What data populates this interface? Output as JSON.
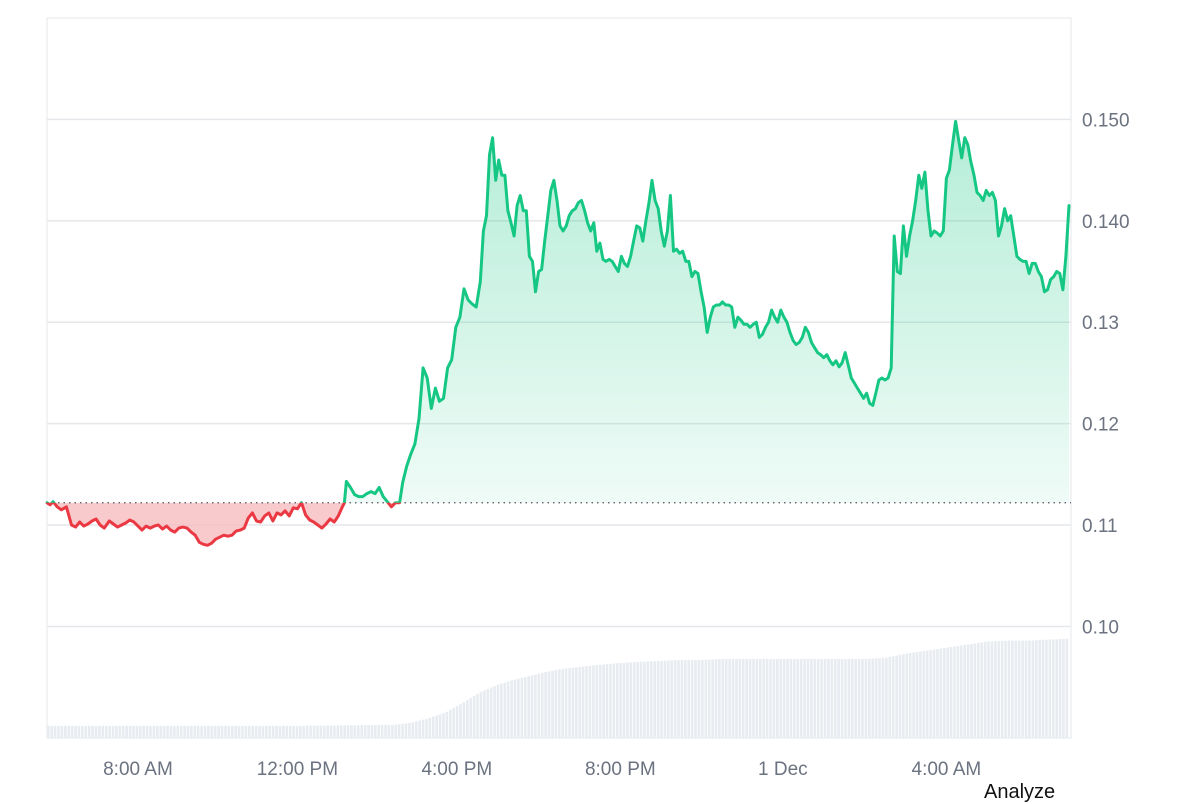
{
  "chart_data": {
    "type": "area",
    "baseline": 0.1122,
    "ylim": [
      0.089,
      0.16
    ],
    "yticks": [
      {
        "value": 0.15,
        "label": "0.150"
      },
      {
        "value": 0.14,
        "label": "0.140"
      },
      {
        "value": 0.13,
        "label": "0.13"
      },
      {
        "value": 0.12,
        "label": "0.12"
      },
      {
        "value": 0.11,
        "label": "0.11"
      },
      {
        "value": 0.1,
        "label": "0.10"
      }
    ],
    "xlim": [
      0,
      1000
    ],
    "xticks": [
      {
        "t": 89,
        "label": "8:00 AM"
      },
      {
        "t": 245,
        "label": "12:00 PM"
      },
      {
        "t": 401,
        "label": "4:00 PM"
      },
      {
        "t": 561,
        "label": "8:00 PM"
      },
      {
        "t": 720,
        "label": "1 Dec"
      },
      {
        "t": 880,
        "label": "4:00 AM"
      }
    ],
    "price": [
      [
        0,
        0.1122
      ],
      [
        3,
        0.112
      ],
      [
        6,
        0.1123
      ],
      [
        10,
        0.1118
      ],
      [
        14,
        0.1115
      ],
      [
        19,
        0.1118
      ],
      [
        24,
        0.11
      ],
      [
        28,
        0.1098
      ],
      [
        32,
        0.1103
      ],
      [
        36,
        0.1099
      ],
      [
        40,
        0.1101
      ],
      [
        44,
        0.1104
      ],
      [
        48,
        0.1106
      ],
      [
        52,
        0.11
      ],
      [
        56,
        0.1097
      ],
      [
        61,
        0.1104
      ],
      [
        65,
        0.1101
      ],
      [
        69,
        0.1098
      ],
      [
        73,
        0.11
      ],
      [
        77,
        0.1102
      ],
      [
        81,
        0.1105
      ],
      [
        85,
        0.1103
      ],
      [
        89,
        0.1099
      ],
      [
        93,
        0.1095
      ],
      [
        97,
        0.1099
      ],
      [
        101,
        0.1097
      ],
      [
        105,
        0.1099
      ],
      [
        109,
        0.11
      ],
      [
        113,
        0.1096
      ],
      [
        117,
        0.1099
      ],
      [
        121,
        0.1095
      ],
      [
        125,
        0.1093
      ],
      [
        129,
        0.1097
      ],
      [
        133,
        0.1098
      ],
      [
        137,
        0.1097
      ],
      [
        141,
        0.1093
      ],
      [
        145,
        0.109
      ],
      [
        149,
        0.1083
      ],
      [
        153,
        0.1081
      ],
      [
        157,
        0.108
      ],
      [
        161,
        0.1082
      ],
      [
        165,
        0.1086
      ],
      [
        169,
        0.1088
      ],
      [
        173,
        0.109
      ],
      [
        177,
        0.1089
      ],
      [
        181,
        0.109
      ],
      [
        185,
        0.1094
      ],
      [
        189,
        0.1095
      ],
      [
        193,
        0.1097
      ],
      [
        197,
        0.1107
      ],
      [
        201,
        0.1112
      ],
      [
        205,
        0.1104
      ],
      [
        209,
        0.1103
      ],
      [
        213,
        0.1109
      ],
      [
        217,
        0.1112
      ],
      [
        221,
        0.1104
      ],
      [
        225,
        0.1112
      ],
      [
        229,
        0.111
      ],
      [
        233,
        0.1114
      ],
      [
        237,
        0.1109
      ],
      [
        241,
        0.1117
      ],
      [
        245,
        0.1116
      ],
      [
        249,
        0.1122
      ],
      [
        253,
        0.111
      ],
      [
        257,
        0.1105
      ],
      [
        261,
        0.1103
      ],
      [
        265,
        0.11
      ],
      [
        269,
        0.1097
      ],
      [
        273,
        0.1101
      ],
      [
        277,
        0.1106
      ],
      [
        281,
        0.1103
      ],
      [
        285,
        0.1109
      ],
      [
        289,
        0.1118
      ],
      [
        291,
        0.1122
      ],
      [
        293,
        0.1143
      ],
      [
        297,
        0.1137
      ],
      [
        301,
        0.113
      ],
      [
        305,
        0.1128
      ],
      [
        309,
        0.1128
      ],
      [
        313,
        0.1131
      ],
      [
        317,
        0.1133
      ],
      [
        321,
        0.1131
      ],
      [
        325,
        0.1137
      ],
      [
        329,
        0.1128
      ],
      [
        333,
        0.1123
      ],
      [
        337,
        0.1118
      ],
      [
        341,
        0.1122
      ],
      [
        345,
        0.1122
      ],
      [
        348,
        0.1142
      ],
      [
        352,
        0.1158
      ],
      [
        356,
        0.117
      ],
      [
        360,
        0.118
      ],
      [
        364,
        0.1205
      ],
      [
        368,
        0.1255
      ],
      [
        372,
        0.1245
      ],
      [
        376,
        0.1215
      ],
      [
        380,
        0.1235
      ],
      [
        384,
        0.1222
      ],
      [
        388,
        0.1225
      ],
      [
        392,
        0.1255
      ],
      [
        396,
        0.1263
      ],
      [
        400,
        0.1295
      ],
      [
        404,
        0.1305
      ],
      [
        408,
        0.1333
      ],
      [
        412,
        0.1322
      ],
      [
        416,
        0.1318
      ],
      [
        420,
        0.1315
      ],
      [
        424,
        0.134
      ],
      [
        427,
        0.139
      ],
      [
        430,
        0.1405
      ],
      [
        433,
        0.1465
      ],
      [
        436,
        0.1482
      ],
      [
        439,
        0.144
      ],
      [
        442,
        0.146
      ],
      [
        445,
        0.1445
      ],
      [
        448,
        0.1445
      ],
      [
        451,
        0.141
      ],
      [
        454,
        0.1398
      ],
      [
        457,
        0.1385
      ],
      [
        460,
        0.1415
      ],
      [
        463,
        0.1425
      ],
      [
        466,
        0.141
      ],
      [
        469,
        0.141
      ],
      [
        472,
        0.1365
      ],
      [
        475,
        0.136
      ],
      [
        478,
        0.133
      ],
      [
        481,
        0.135
      ],
      [
        484,
        0.1352
      ],
      [
        487,
        0.138
      ],
      [
        490,
        0.1405
      ],
      [
        493,
        0.143
      ],
      [
        496,
        0.144
      ],
      [
        499,
        0.142
      ],
      [
        502,
        0.1395
      ],
      [
        505,
        0.139
      ],
      [
        508,
        0.1395
      ],
      [
        511,
        0.1405
      ],
      [
        514,
        0.141
      ],
      [
        517,
        0.1412
      ],
      [
        520,
        0.1418
      ],
      [
        523,
        0.142
      ],
      [
        526,
        0.141
      ],
      [
        529,
        0.1398
      ],
      [
        532,
        0.139
      ],
      [
        535,
        0.1398
      ],
      [
        538,
        0.137
      ],
      [
        541,
        0.1378
      ],
      [
        544,
        0.1362
      ],
      [
        547,
        0.136
      ],
      [
        550,
        0.1362
      ],
      [
        553,
        0.136
      ],
      [
        556,
        0.1355
      ],
      [
        559,
        0.135
      ],
      [
        562,
        0.1365
      ],
      [
        565,
        0.1358
      ],
      [
        568,
        0.1355
      ],
      [
        571,
        0.1365
      ],
      [
        574,
        0.138
      ],
      [
        577,
        0.1395
      ],
      [
        580,
        0.1393
      ],
      [
        583,
        0.138
      ],
      [
        586,
        0.14
      ],
      [
        589,
        0.1418
      ],
      [
        592,
        0.144
      ],
      [
        595,
        0.142
      ],
      [
        598,
        0.1412
      ],
      [
        601,
        0.139
      ],
      [
        604,
        0.1375
      ],
      [
        607,
        0.139
      ],
      [
        610,
        0.1425
      ],
      [
        613,
        0.137
      ],
      [
        616,
        0.1372
      ],
      [
        619,
        0.1368
      ],
      [
        622,
        0.137
      ],
      [
        625,
        0.136
      ],
      [
        628,
        0.136
      ],
      [
        631,
        0.1345
      ],
      [
        634,
        0.135
      ],
      [
        637,
        0.1348
      ],
      [
        640,
        0.133
      ],
      [
        643,
        0.1315
      ],
      [
        646,
        0.129
      ],
      [
        649,
        0.1305
      ],
      [
        652,
        0.1315
      ],
      [
        655,
        0.1317
      ],
      [
        658,
        0.1317
      ],
      [
        661,
        0.132
      ],
      [
        664,
        0.1317
      ],
      [
        667,
        0.1317
      ],
      [
        670,
        0.1315
      ],
      [
        673,
        0.1295
      ],
      [
        676,
        0.1305
      ],
      [
        679,
        0.1302
      ],
      [
        682,
        0.1298
      ],
      [
        685,
        0.1298
      ],
      [
        688,
        0.1295
      ],
      [
        691,
        0.1298
      ],
      [
        694,
        0.13
      ],
      [
        697,
        0.1285
      ],
      [
        700,
        0.1288
      ],
      [
        703,
        0.1295
      ],
      [
        706,
        0.13
      ],
      [
        709,
        0.1312
      ],
      [
        712,
        0.1305
      ],
      [
        715,
        0.13
      ],
      [
        718,
        0.1312
      ],
      [
        721,
        0.1305
      ],
      [
        724,
        0.13
      ],
      [
        727,
        0.129
      ],
      [
        730,
        0.1282
      ],
      [
        733,
        0.1278
      ],
      [
        736,
        0.128
      ],
      [
        739,
        0.1285
      ],
      [
        742,
        0.1295
      ],
      [
        745,
        0.129
      ],
      [
        748,
        0.128
      ],
      [
        751,
        0.1275
      ],
      [
        754,
        0.127
      ],
      [
        757,
        0.1268
      ],
      [
        760,
        0.1265
      ],
      [
        763,
        0.1268
      ],
      [
        766,
        0.1262
      ],
      [
        769,
        0.1258
      ],
      [
        772,
        0.1262
      ],
      [
        775,
        0.1256
      ],
      [
        778,
        0.126
      ],
      [
        781,
        0.127
      ],
      [
        784,
        0.1258
      ],
      [
        787,
        0.1245
      ],
      [
        790,
        0.124
      ],
      [
        793,
        0.1235
      ],
      [
        796,
        0.123
      ],
      [
        799,
        0.1225
      ],
      [
        802,
        0.123
      ],
      [
        805,
        0.122
      ],
      [
        808,
        0.1218
      ],
      [
        811,
        0.123
      ],
      [
        814,
        0.1243
      ],
      [
        817,
        0.1245
      ],
      [
        820,
        0.1243
      ],
      [
        823,
        0.1245
      ],
      [
        826,
        0.1255
      ],
      [
        829,
        0.1385
      ],
      [
        832,
        0.135
      ],
      [
        835,
        0.1348
      ],
      [
        838,
        0.1395
      ],
      [
        841,
        0.1365
      ],
      [
        844,
        0.1385
      ],
      [
        847,
        0.14
      ],
      [
        850,
        0.142
      ],
      [
        853,
        0.1445
      ],
      [
        856,
        0.1432
      ],
      [
        859,
        0.1448
      ],
      [
        862,
        0.141
      ],
      [
        865,
        0.1385
      ],
      [
        868,
        0.139
      ],
      [
        871,
        0.1388
      ],
      [
        874,
        0.1385
      ],
      [
        877,
        0.139
      ],
      [
        880,
        0.1442
      ],
      [
        883,
        0.145
      ],
      [
        886,
        0.1475
      ],
      [
        889,
        0.1498
      ],
      [
        892,
        0.148
      ],
      [
        895,
        0.1462
      ],
      [
        898,
        0.1482
      ],
      [
        901,
        0.1475
      ],
      [
        904,
        0.1458
      ],
      [
        907,
        0.1445
      ],
      [
        910,
        0.1428
      ],
      [
        913,
        0.1425
      ],
      [
        916,
        0.142
      ],
      [
        919,
        0.143
      ],
      [
        922,
        0.1425
      ],
      [
        925,
        0.1428
      ],
      [
        928,
        0.142
      ],
      [
        931,
        0.1385
      ],
      [
        934,
        0.1395
      ],
      [
        937,
        0.1412
      ],
      [
        940,
        0.14
      ],
      [
        943,
        0.1405
      ],
      [
        946,
        0.1385
      ],
      [
        949,
        0.1365
      ],
      [
        952,
        0.1362
      ],
      [
        955,
        0.136
      ],
      [
        958,
        0.136
      ],
      [
        961,
        0.1348
      ],
      [
        964,
        0.1358
      ],
      [
        967,
        0.1358
      ],
      [
        970,
        0.135
      ],
      [
        973,
        0.1345
      ],
      [
        976,
        0.133
      ],
      [
        979,
        0.1332
      ],
      [
        982,
        0.1342
      ],
      [
        985,
        0.1345
      ],
      [
        988,
        0.135
      ],
      [
        991,
        0.1348
      ],
      [
        994,
        0.1332
      ],
      [
        997,
        0.1365
      ],
      [
        1000,
        0.1415
      ]
    ],
    "volume": [
      [
        0,
        0.0902
      ],
      [
        250,
        0.0902
      ],
      [
        340,
        0.0903
      ],
      [
        356,
        0.0905
      ],
      [
        372,
        0.0909
      ],
      [
        390,
        0.0915
      ],
      [
        408,
        0.0925
      ],
      [
        424,
        0.0935
      ],
      [
        440,
        0.0942
      ],
      [
        456,
        0.0947
      ],
      [
        472,
        0.0951
      ],
      [
        488,
        0.0955
      ],
      [
        504,
        0.0958
      ],
      [
        520,
        0.096
      ],
      [
        540,
        0.0962
      ],
      [
        560,
        0.0964
      ],
      [
        580,
        0.0965
      ],
      [
        600,
        0.0966
      ],
      [
        620,
        0.0967
      ],
      [
        640,
        0.0967
      ],
      [
        660,
        0.0968
      ],
      [
        680,
        0.0968
      ],
      [
        700,
        0.0968
      ],
      [
        720,
        0.0968
      ],
      [
        760,
        0.0968
      ],
      [
        800,
        0.0968
      ],
      [
        820,
        0.0969
      ],
      [
        840,
        0.0973
      ],
      [
        860,
        0.0976
      ],
      [
        880,
        0.0979
      ],
      [
        900,
        0.0982
      ],
      [
        920,
        0.0985
      ],
      [
        940,
        0.0986
      ],
      [
        960,
        0.0986
      ],
      [
        980,
        0.0987
      ],
      [
        1000,
        0.0988
      ]
    ],
    "colors": {
      "up_line": "#16c784",
      "down_line": "#ea3943",
      "up_fill_top": "#16c784",
      "down_fill": "#f7b8bb",
      "grid": "#e5e7eb",
      "volume": "#e8ecf1",
      "axis_text": "#6b7280",
      "baseline": "#4b5563"
    }
  },
  "footer": {
    "analyze_label": "Analyze"
  }
}
